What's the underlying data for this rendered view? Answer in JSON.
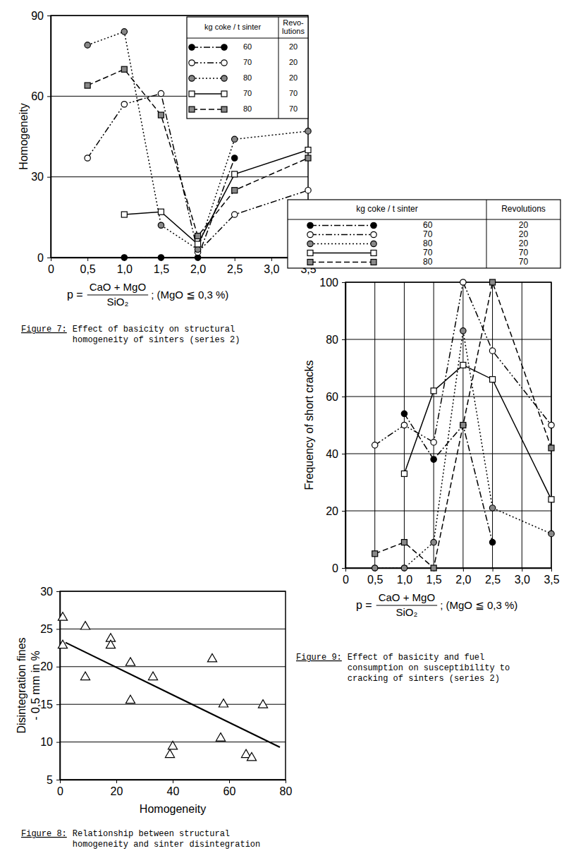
{
  "chart_data": [
    {
      "type": "line",
      "title": "Figure 7:",
      "caption": [
        "Effect of basicity on structural",
        "homogeneity of sinters (series 2)"
      ],
      "y_label": "Homogeneity",
      "x_label": {
        "left": "p =",
        "numerator": "CaO + MgO",
        "denominator": "SiO₂",
        "right": "; (MgO ≦ 0,3 %)"
      },
      "x": [
        0.5,
        1,
        1.5,
        2,
        2.5,
        3.5
      ],
      "xlim": [
        0,
        3.5
      ],
      "xticks": [
        0,
        {
          "value": 0.5,
          "label": "0,5"
        },
        {
          "value": 1,
          "label": "1,0"
        },
        {
          "value": 1.5,
          "label": "1,5"
        },
        {
          "value": 2,
          "label": "2,0"
        },
        {
          "value": 2.5,
          "label": "2,5"
        },
        {
          "value": 3,
          "label": "3,0"
        },
        {
          "value": 3.5,
          "label": "3,5"
        }
      ],
      "ylim": [
        0,
        90
      ],
      "yticks": [
        0,
        30,
        60,
        90
      ],
      "grid": "y",
      "legend": "upper right",
      "legend_header": {
        "name": "kg coke / t sinter",
        "revolutions": [
          "Revo-",
          "lutions"
        ]
      },
      "series": [
        {
          "name": "60",
          "revolutions": 20,
          "color": "#000000",
          "marker": "filled-circle",
          "line_style": "dash-dot",
          "values": [
            null,
            0,
            0,
            0,
            37,
            null
          ]
        },
        {
          "name": "70",
          "revolutions": 20,
          "color": "#000000",
          "marker": "open-circle",
          "line_style": "dash-dot-dot",
          "values": [
            37,
            57,
            61,
            2,
            16,
            25
          ]
        },
        {
          "name": "80",
          "revolutions": 20,
          "color": "#000000",
          "marker": "half-circle",
          "line_style": "dotted",
          "values": [
            79,
            84,
            12,
            3,
            44,
            47
          ]
        },
        {
          "name": "70",
          "revolutions": 70,
          "color": "#000000",
          "marker": "open-square",
          "line_style": "solid",
          "values": [
            null,
            16,
            17,
            5,
            31,
            40
          ]
        },
        {
          "name": "80",
          "revolutions": 70,
          "color": "#000000",
          "marker": "half-square",
          "line_style": "dashed",
          "values": [
            64,
            70,
            53,
            8,
            25,
            37
          ]
        }
      ]
    },
    {
      "type": "line",
      "title": "Figure 9:",
      "caption": [
        "Effect of basicity and fuel",
        "consumption on susceptibility to",
        "cracking of sinters (series 2)"
      ],
      "y_label": "Frequency of short cracks",
      "x_label": {
        "left": "p =",
        "numerator": "CaO + MgO",
        "denominator": "SiO₂",
        "right": "; (MgO ≦ 0,3 %)"
      },
      "x": [
        0.5,
        1,
        1.5,
        2,
        2.5,
        3.5
      ],
      "xlim": [
        0,
        3.5
      ],
      "xticks": [
        0,
        {
          "value": 0.5,
          "label": "0,5"
        },
        {
          "value": 1,
          "label": "1,0"
        },
        {
          "value": 1.5,
          "label": "1,5"
        },
        {
          "value": 2,
          "label": "2,0"
        },
        {
          "value": 2.5,
          "label": "2,5"
        },
        {
          "value": 3,
          "label": "3,0"
        },
        {
          "value": 3.5,
          "label": "3,5"
        }
      ],
      "ylim": [
        0,
        100
      ],
      "yticks": [
        0,
        20,
        40,
        60,
        80,
        100
      ],
      "grid": true,
      "legend": "top",
      "legend_header": {
        "name": "kg coke / t sinter",
        "revolutions": [
          "Revolutions"
        ]
      },
      "series": [
        {
          "name": "60",
          "revolutions": 20,
          "color": "#000000",
          "marker": "filled-circle",
          "line_style": "dash-dot",
          "values": [
            null,
            54,
            38,
            50,
            9,
            null
          ]
        },
        {
          "name": "70",
          "revolutions": 20,
          "color": "#000000",
          "marker": "open-circle",
          "line_style": "dash-dot-dot",
          "values": [
            43,
            50,
            44,
            100,
            76,
            50
          ]
        },
        {
          "name": "80",
          "revolutions": 20,
          "color": "#000000",
          "marker": "half-circle",
          "line_style": "dotted",
          "values": [
            0,
            0,
            9,
            83,
            21,
            12
          ]
        },
        {
          "name": "70",
          "revolutions": 70,
          "color": "#000000",
          "marker": "open-square",
          "line_style": "solid",
          "values": [
            null,
            33,
            62,
            71,
            66,
            24
          ]
        },
        {
          "name": "80",
          "revolutions": 70,
          "color": "#000000",
          "marker": "half-square",
          "line_style": "dashed",
          "values": [
            5,
            9,
            0,
            50,
            100,
            42
          ]
        }
      ]
    },
    {
      "type": "scatter",
      "title": "Figure 8:",
      "caption": [
        "Relationship between structural",
        "homogeneity and sinter disintegration"
      ],
      "y_label": [
        "Disintegration fines",
        "- 0,5 mm in %"
      ],
      "x_label": "Homogeneity",
      "xlim": [
        0,
        80
      ],
      "xticks": [
        0,
        20,
        40,
        60,
        80
      ],
      "ylim": [
        5,
        30
      ],
      "yticks": [
        5,
        10,
        15,
        20,
        25,
        30
      ],
      "grid": "y",
      "series": [
        {
          "type": "scatter",
          "color": "#000000",
          "marker": "triangle",
          "x": [
            1,
            1,
            9,
            9,
            18,
            18,
            25,
            25,
            33,
            39,
            40,
            54,
            57,
            58,
            66,
            68,
            72
          ],
          "values": [
            26.5,
            22.8,
            25.3,
            18.6,
            23.7,
            22.8,
            20.5,
            15.5,
            18.6,
            8.3,
            9.4,
            21,
            10.5,
            15,
            8.3,
            7.9,
            14.9
          ]
        },
        {
          "type": "line",
          "color": "#000000",
          "line_style": "solid",
          "x": [
            2,
            78
          ],
          "values": [
            23.2,
            9.3
          ]
        }
      ]
    }
  ]
}
